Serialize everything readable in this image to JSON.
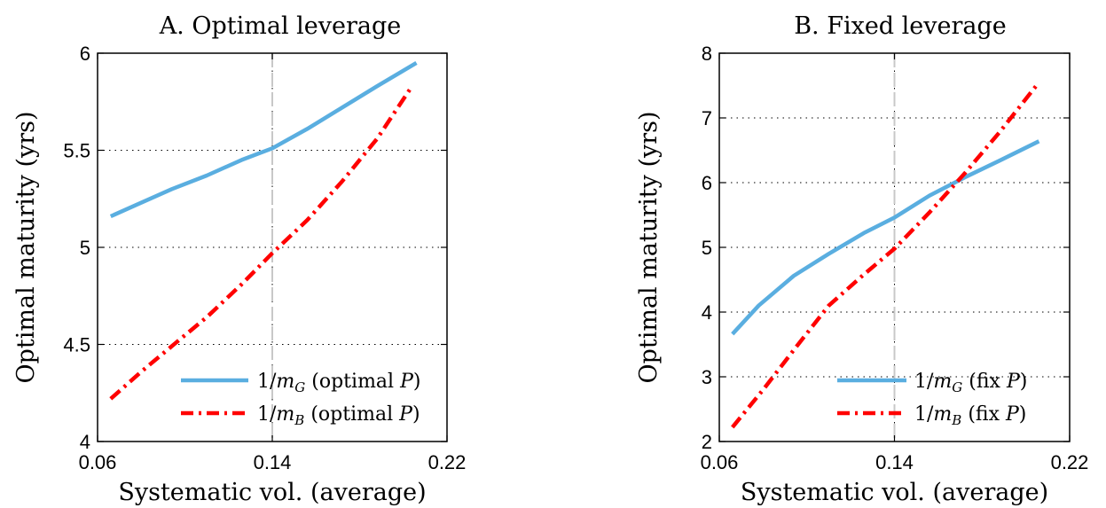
{
  "chart_data": [
    {
      "type": "line",
      "title": "A. Optimal leverage",
      "xlabel": "Systematic vol. (average)",
      "ylabel": "Optimal maturity (yrs)",
      "xlim": [
        0.06,
        0.22
      ],
      "ylim": [
        4,
        6
      ],
      "xticks": [
        0.06,
        0.14,
        0.22
      ],
      "xtick_labels": [
        "0.06",
        "0.14",
        "0.22"
      ],
      "yticks": [
        4,
        4.5,
        5,
        5.5,
        6
      ],
      "ytick_labels": [
        "4",
        "4.5",
        "5",
        "5.5",
        "6"
      ],
      "grid": "dotted",
      "vertical_marker_x": 0.14,
      "legend_position": "bottom-right",
      "series": [
        {
          "name_parts": [
            "1/",
            "m",
            "G",
            " (optimal ",
            "P",
            ")"
          ],
          "color": "#5aaee0",
          "style": "solid",
          "x": [
            0.066,
            0.078,
            0.094,
            0.11,
            0.126,
            0.14,
            0.156,
            0.172,
            0.188,
            0.206
          ],
          "y": [
            5.16,
            5.22,
            5.3,
            5.37,
            5.45,
            5.51,
            5.61,
            5.72,
            5.83,
            5.95
          ]
        },
        {
          "name_parts": [
            "1/",
            "m",
            "B",
            " (optimal ",
            "P",
            ")"
          ],
          "color": "#ff0000",
          "style": "dashdot",
          "x": [
            0.066,
            0.08,
            0.096,
            0.11,
            0.126,
            0.14,
            0.156,
            0.172,
            0.188,
            0.204
          ],
          "y": [
            4.22,
            4.36,
            4.51,
            4.64,
            4.81,
            4.97,
            5.14,
            5.34,
            5.56,
            5.83
          ]
        }
      ]
    },
    {
      "type": "line",
      "title": "B. Fixed leverage",
      "xlabel": "Systematic vol. (average)",
      "ylabel": "Optimal maturity (yrs)",
      "xlim": [
        0.06,
        0.22
      ],
      "ylim": [
        2,
        8
      ],
      "xticks": [
        0.06,
        0.14,
        0.22
      ],
      "xtick_labels": [
        "0.06",
        "0.14",
        "0.22"
      ],
      "yticks": [
        2,
        3,
        4,
        5,
        6,
        7,
        8
      ],
      "ytick_labels": [
        "2",
        "3",
        "4",
        "5",
        "6",
        "7",
        "8"
      ],
      "grid": "dotted",
      "vertical_marker_x": 0.14,
      "legend_position": "bottom-right",
      "series": [
        {
          "name_parts": [
            "1/",
            "m",
            "G",
            " (fix ",
            "P",
            ")"
          ],
          "color": "#5aaee0",
          "style": "solid",
          "x": [
            0.066,
            0.078,
            0.094,
            0.11,
            0.126,
            0.14,
            0.156,
            0.172,
            0.188,
            0.206
          ],
          "y": [
            3.66,
            4.1,
            4.56,
            4.9,
            5.22,
            5.46,
            5.8,
            6.08,
            6.34,
            6.64
          ]
        },
        {
          "name_parts": [
            "1/",
            "m",
            "B",
            " (fix ",
            "P",
            ")"
          ],
          "color": "#ff0000",
          "style": "dashdot",
          "x": [
            0.066,
            0.08,
            0.096,
            0.11,
            0.126,
            0.14,
            0.156,
            0.172,
            0.188,
            0.206
          ],
          "y": [
            2.22,
            2.8,
            3.5,
            4.1,
            4.58,
            4.98,
            5.54,
            6.14,
            6.78,
            7.55
          ]
        }
      ]
    }
  ]
}
